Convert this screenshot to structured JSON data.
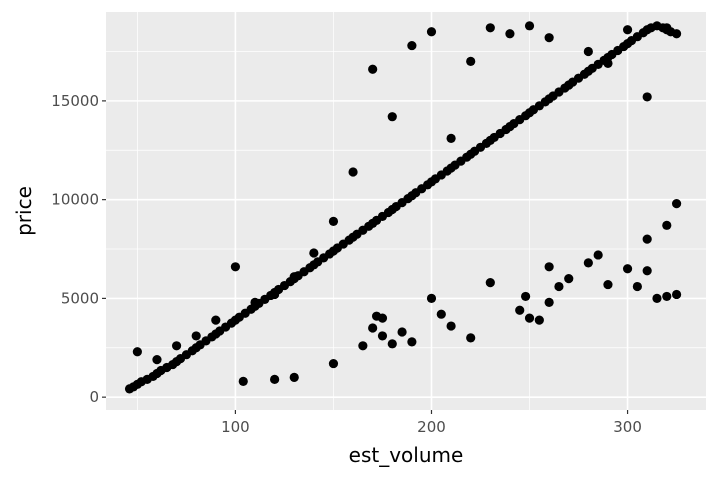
{
  "chart_data": {
    "type": "scatter",
    "title": "",
    "xlabel": "est_volume",
    "ylabel": "price",
    "xlim": [
      34,
      340
    ],
    "ylim": [
      -650,
      19500
    ],
    "x_ticks": [
      100,
      200,
      300
    ],
    "x_tick_labels": [
      "100",
      "200",
      "300"
    ],
    "y_ticks": [
      0,
      5000,
      10000,
      15000
    ],
    "y_tick_labels": [
      "0",
      "5000",
      "10000",
      "15000"
    ],
    "grid": true,
    "legend": "none",
    "panel_background": "#ebebeb",
    "grid_color": "#ffffff",
    "point_color": "#000000",
    "series": [
      {
        "name": "",
        "x": [
          46,
          48,
          50,
          52,
          55,
          58,
          60,
          62,
          65,
          68,
          70,
          72,
          75,
          78,
          80,
          82,
          85,
          88,
          90,
          92,
          95,
          98,
          100,
          102,
          105,
          108,
          110,
          112,
          115,
          118,
          120,
          122,
          125,
          128,
          130,
          132,
          135,
          138,
          140,
          142,
          145,
          148,
          150,
          152,
          155,
          158,
          160,
          162,
          165,
          168,
          170,
          172,
          175,
          178,
          180,
          182,
          185,
          188,
          190,
          192,
          195,
          198,
          200,
          202,
          205,
          208,
          210,
          212,
          215,
          218,
          220,
          222,
          225,
          228,
          230,
          232,
          235,
          238,
          240,
          242,
          245,
          248,
          250,
          252,
          255,
          258,
          260,
          262,
          265,
          268,
          270,
          272,
          275,
          278,
          280,
          282,
          285,
          288,
          290,
          292,
          295,
          298,
          300,
          302,
          305,
          308,
          310,
          312,
          315,
          318,
          320,
          322,
          325,
          50,
          60,
          70,
          80,
          90,
          100,
          110,
          120,
          130,
          140,
          150,
          160,
          170,
          180,
          190,
          200,
          210,
          220,
          230,
          240,
          250,
          260,
          270,
          280,
          290,
          300,
          310,
          320,
          104,
          130,
          165,
          170,
          172,
          175,
          180,
          185,
          190,
          205,
          210,
          220,
          245,
          248,
          250,
          255,
          260,
          265,
          270,
          280,
          290,
          300,
          305,
          310,
          315,
          320,
          325,
          120,
          150,
          175,
          200,
          230,
          260,
          285,
          310,
          320,
          325
        ],
        "y": [
          420,
          520,
          650,
          780,
          900,
          1050,
          1200,
          1350,
          1500,
          1650,
          1800,
          1950,
          2150,
          2350,
          2500,
          2650,
          2850,
          3050,
          3200,
          3350,
          3550,
          3750,
          3900,
          4050,
          4250,
          4450,
          4600,
          4750,
          4950,
          5150,
          5300,
          5450,
          5650,
          5850,
          6000,
          6150,
          6350,
          6550,
          6700,
          6850,
          7050,
          7250,
          7400,
          7550,
          7750,
          7950,
          8100,
          8250,
          8450,
          8650,
          8800,
          8950,
          9150,
          9350,
          9500,
          9650,
          9850,
          10050,
          10200,
          10350,
          10550,
          10750,
          10900,
          11050,
          11250,
          11450,
          11600,
          11750,
          11950,
          12150,
          12300,
          12450,
          12650,
          12850,
          13000,
          13150,
          13350,
          13550,
          13700,
          13850,
          14050,
          14250,
          14400,
          14550,
          14750,
          14950,
          15100,
          15250,
          15450,
          15650,
          15800,
          15950,
          16150,
          16350,
          16500,
          16650,
          16850,
          17050,
          17200,
          17350,
          17550,
          17750,
          17900,
          18050,
          18250,
          18450,
          18600,
          18700,
          18800,
          18700,
          18600,
          18500,
          18400,
          2300,
          1900,
          2600,
          3100,
          3900,
          6600,
          4800,
          5200,
          6100,
          7300,
          8900,
          11400,
          16600,
          14200,
          17800,
          18500,
          13100,
          17000,
          18700,
          18400,
          18800,
          18200,
          15800,
          17500,
          16900,
          18600,
          15200,
          18700,
          800,
          1000,
          2600,
          3500,
          4100,
          3100,
          2700,
          3300,
          2800,
          4200,
          3600,
          3000,
          4400,
          5100,
          4000,
          3900,
          4800,
          5600,
          6000,
          6800,
          5700,
          6500,
          5600,
          6400,
          5000,
          5100,
          5200,
          900,
          1700,
          4000,
          5000,
          5800,
          6600,
          7200,
          8000,
          8700,
          9800
        ]
      }
    ]
  }
}
